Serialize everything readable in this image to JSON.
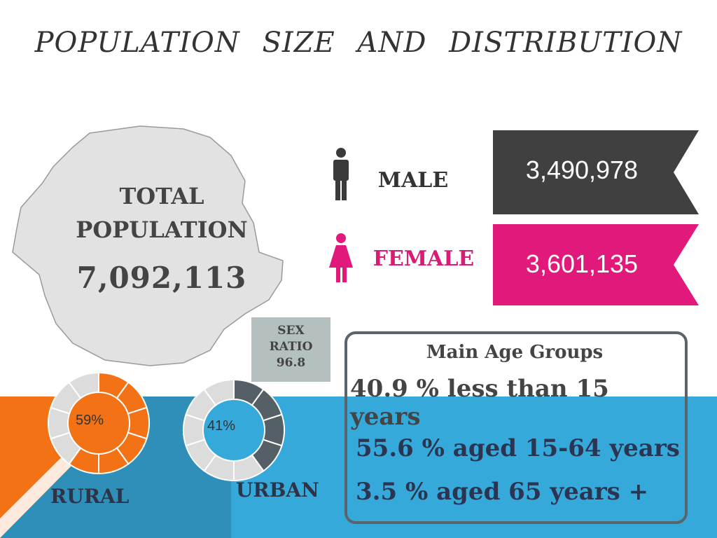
{
  "title": "POPULATION   SIZE   AND   DISTRIBUTION",
  "total": {
    "label_line1": "TOTAL",
    "label_line2": "POPULATION",
    "value": "7,092,113"
  },
  "male": {
    "label": "MALE",
    "value": "3,490,978",
    "color": "#404040",
    "icon": "male-person-icon"
  },
  "female": {
    "label": "FEMALE",
    "value": "3,601,135",
    "color": "#e0197a",
    "icon": "female-person-icon"
  },
  "sex_ratio": {
    "line1": "SEX",
    "line2": "RATIO",
    "value": "96.8"
  },
  "age_groups": {
    "title": "Main Age Groups",
    "items": [
      "40.9 % less than 15 years",
      "55.6 % aged 15-64 years",
      "3.5 %  aged 65 years +"
    ]
  },
  "rural": {
    "label": "RURAL",
    "percent_label": "59%",
    "percent": 59,
    "color": "#f47216"
  },
  "urban": {
    "label": "URBAN",
    "percent_label": "41%",
    "percent": 41,
    "color": "#555f66"
  },
  "colors": {
    "orange": "#f47216",
    "blue": "#36a9db",
    "dark_blue": "#2f8fb8",
    "gray_map": "#e2e2e2"
  }
}
